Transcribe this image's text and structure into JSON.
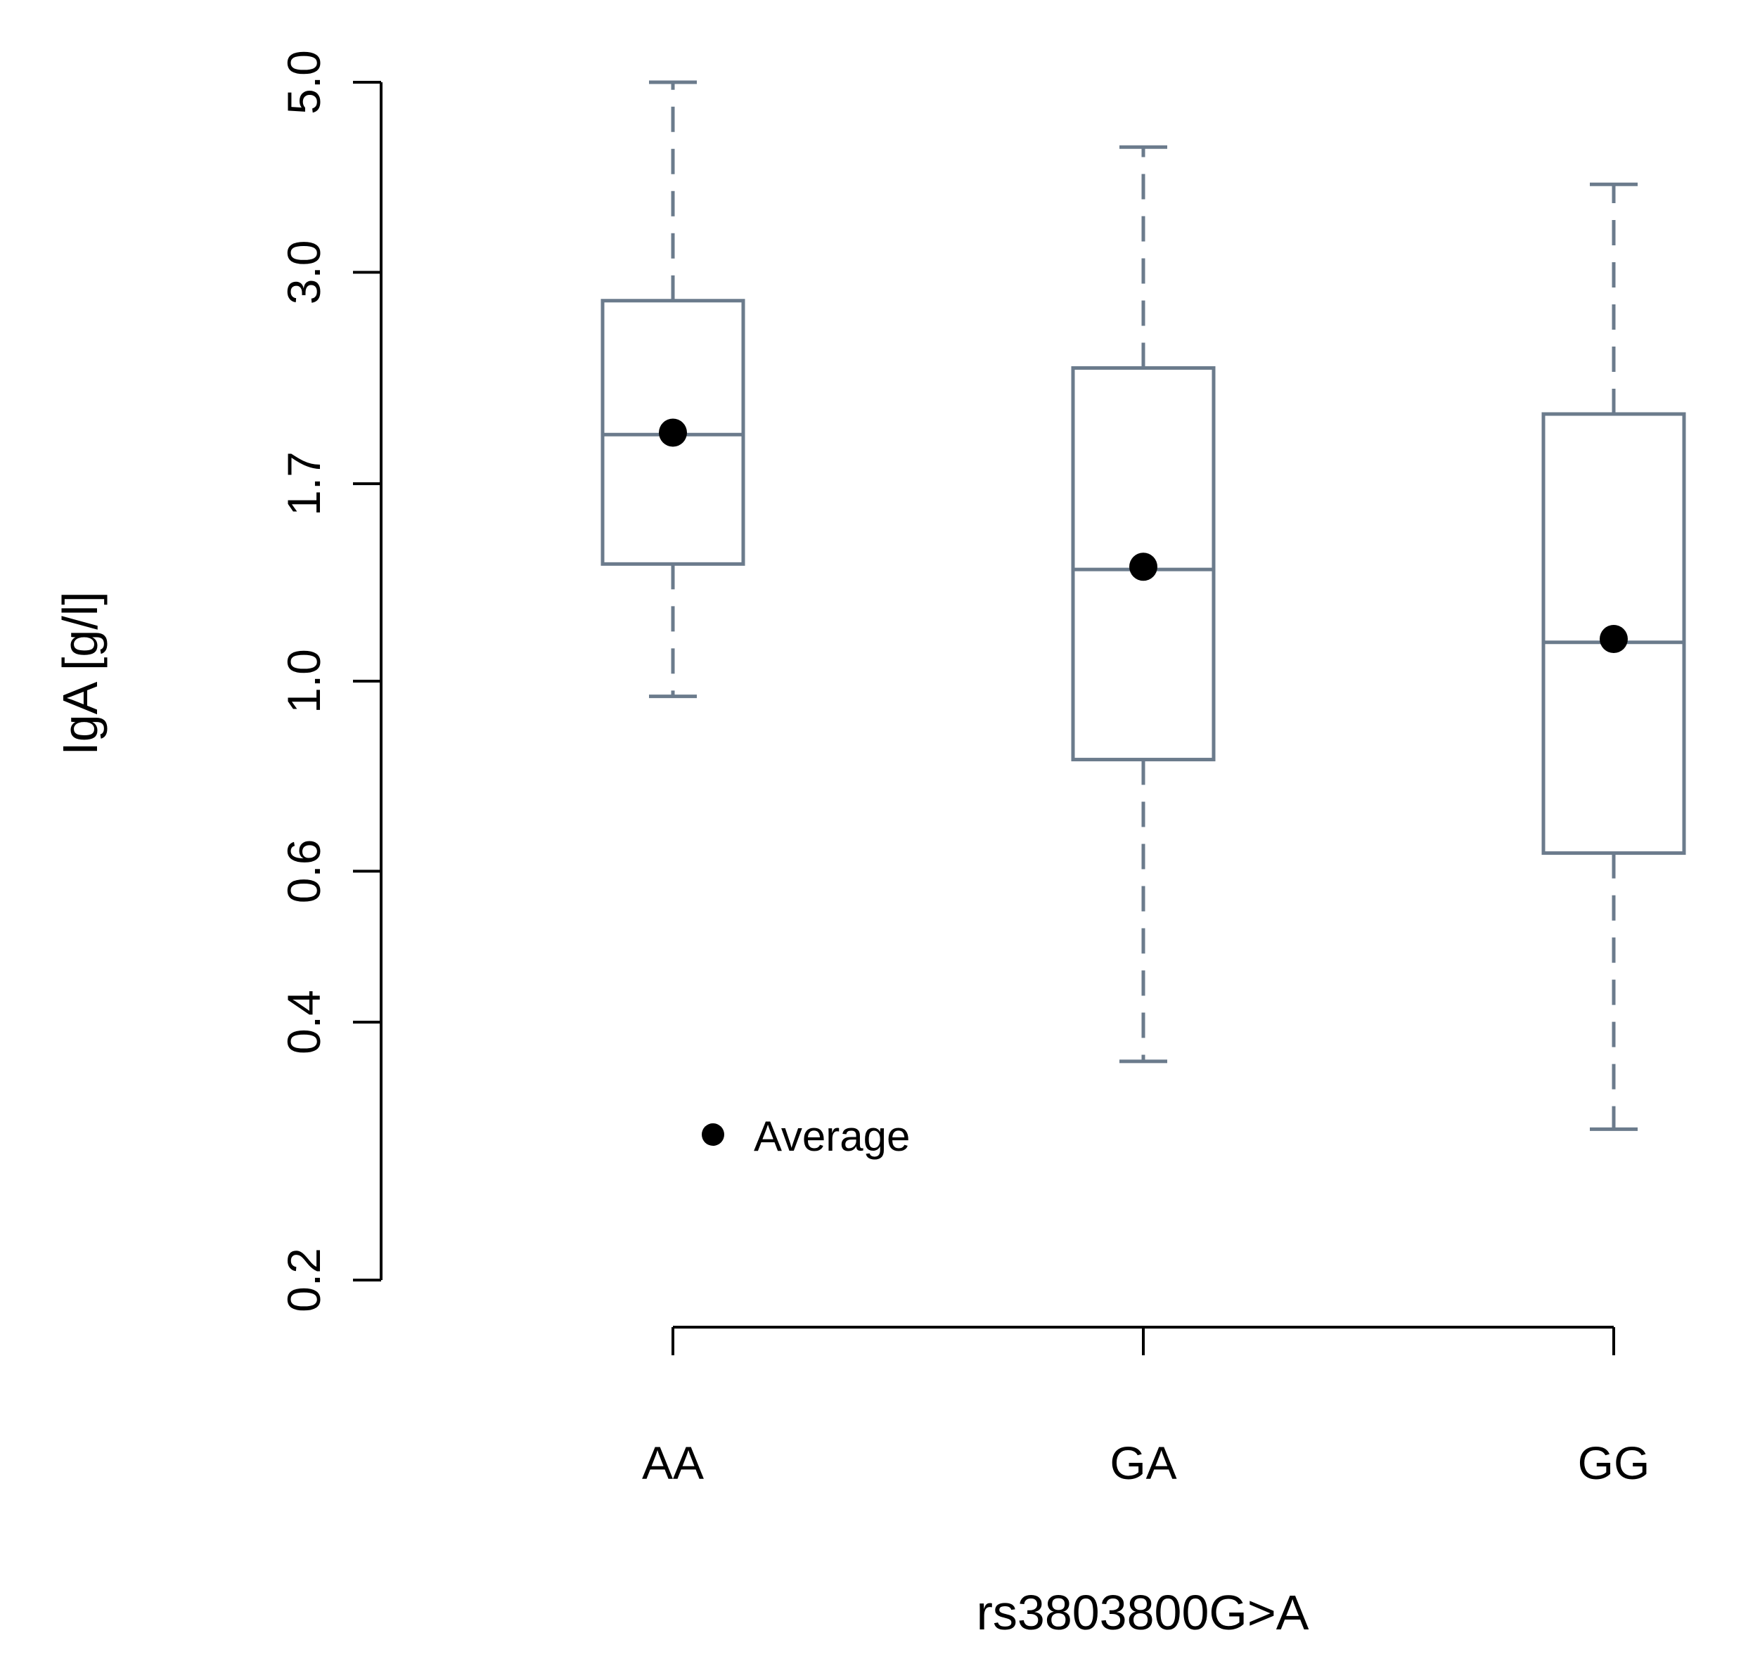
{
  "chart_data": {
    "type": "box",
    "title": "",
    "xlabel": "rs3803800G>A",
    "ylabel": "IgA [g/l]",
    "y_scale": "log",
    "ylim": [
      0.2,
      5.0
    ],
    "y_ticks": [
      0.2,
      0.4,
      0.6,
      1.0,
      1.7,
      3.0,
      5.0
    ],
    "y_tick_labels": [
      "0.2",
      "0.4",
      "0.6",
      "1.0",
      "1.7",
      "3.0",
      "5.0"
    ],
    "categories": [
      "AA",
      "GA",
      "GG"
    ],
    "boxes": [
      {
        "category": "AA",
        "whisker_low": 0.96,
        "q1": 1.37,
        "median": 1.94,
        "q3": 2.78,
        "whisker_high": 5.0,
        "average": 1.95
      },
      {
        "category": "GA",
        "whisker_low": 0.36,
        "q1": 0.81,
        "median": 1.35,
        "q3": 2.32,
        "whisker_high": 4.2,
        "average": 1.36
      },
      {
        "category": "GG",
        "whisker_low": 0.3,
        "q1": 0.63,
        "median": 1.11,
        "q3": 2.05,
        "whisker_high": 3.8,
        "average": 1.12
      }
    ],
    "legend": {
      "label": "Average",
      "marker": "filled-circle",
      "placement": "bottom-left inside plot"
    },
    "colors": {
      "box": "#6b7b8c",
      "average_marker": "#000000",
      "axis": "#000000"
    }
  }
}
